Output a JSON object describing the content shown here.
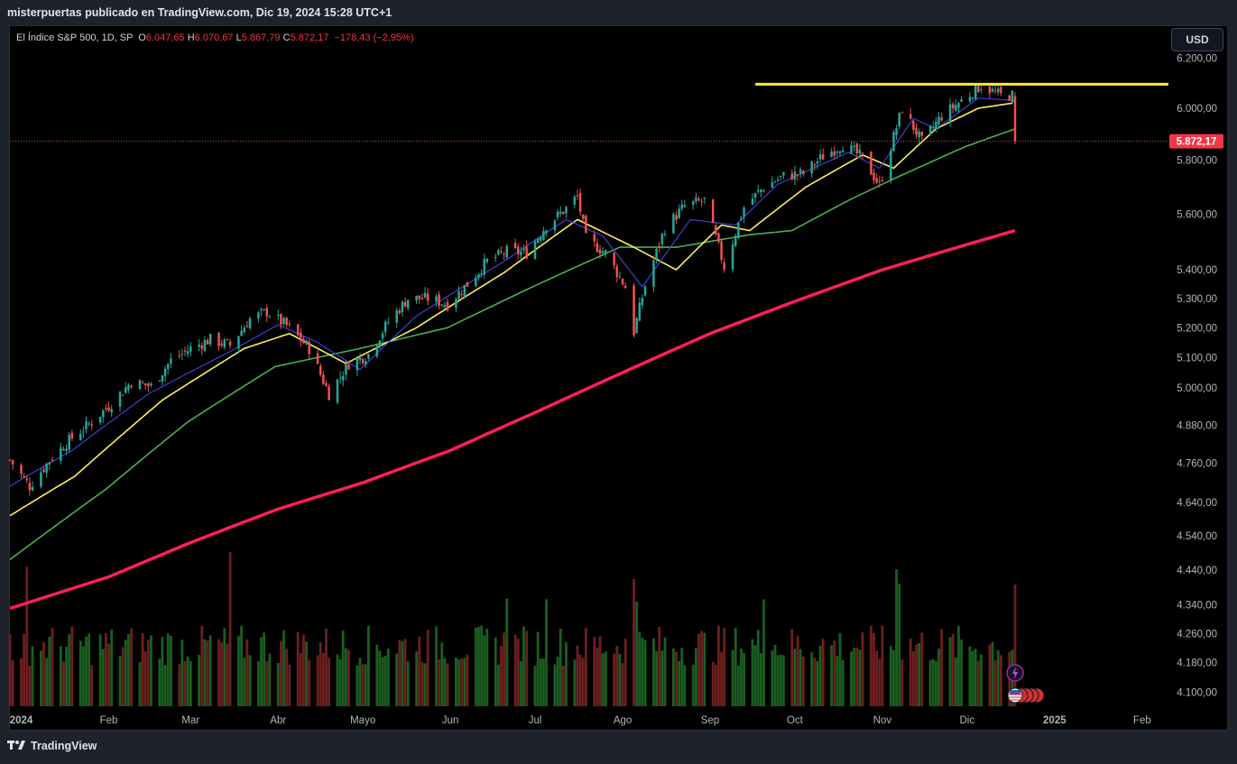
{
  "header": {
    "publisher_text": "misterpuertas publicado en TradingView.com, Dic 19, 2024 15:28 UTC+1"
  },
  "legend": {
    "symbol": "El Índice S&P 500, 1D, SP",
    "open_label": "O",
    "open": "6.047,65",
    "high_label": "H",
    "high": "6.070,67",
    "low_label": "L",
    "low": "5.867,79",
    "close_label": "C",
    "close": "5.872,17",
    "change": "−178,43 (−2,95%)"
  },
  "currency_button": "USD",
  "footer": {
    "brand": "TradingView"
  },
  "colors": {
    "background": "#000000",
    "frame": "#1e222d",
    "axis_text": "#b2b5be",
    "up": "#26a69a",
    "down": "#ef5350",
    "vol_up": "#1b5e20",
    "vol_down": "#6d1f1f",
    "ma_fast": "#3f3fd4",
    "ma_20": "#ffee58",
    "ma_50": "#4caf50",
    "ma_200": "#ff1f5a",
    "resistance": "#ffeb3b",
    "price_tag": "#f23645"
  },
  "chart_data": {
    "type": "candlestick",
    "title": "El Índice S&P 500",
    "interval": "1D",
    "price_scale": "log",
    "y_ticks": [
      6200,
      6000,
      5800,
      5600,
      5400,
      5300,
      5200,
      5100,
      5000,
      4880,
      4760,
      4640,
      4540,
      4440,
      4340,
      4260,
      4180,
      4100
    ],
    "y_tick_labels": [
      "6.200,00",
      "6.000,00",
      "5.800,00",
      "5.600,00",
      "5.400,00",
      "5.300,00",
      "5.200,00",
      "5.100,00",
      "5.000,00",
      "4.880,00",
      "4.760,00",
      "4.640,00",
      "4.540,00",
      "4.440,00",
      "4.340,00",
      "4.260,00",
      "4.180,00",
      "4.100,00"
    ],
    "x_ticks": [
      {
        "label": "2024",
        "date": "2024-01-01"
      },
      {
        "label": "Feb",
        "date": "2024-02-01"
      },
      {
        "label": "Mar",
        "date": "2024-03-01"
      },
      {
        "label": "Abr",
        "date": "2024-04-01"
      },
      {
        "label": "Mayo",
        "date": "2024-05-01"
      },
      {
        "label": "Jun",
        "date": "2024-06-01"
      },
      {
        "label": "Jul",
        "date": "2024-07-01"
      },
      {
        "label": "Ago",
        "date": "2024-08-01"
      },
      {
        "label": "Sep",
        "date": "2024-09-01"
      },
      {
        "label": "Oct",
        "date": "2024-10-01"
      },
      {
        "label": "Nov",
        "date": "2024-11-01"
      },
      {
        "label": "Dic",
        "date": "2024-12-01"
      },
      {
        "label": "2025",
        "date": "2025-01-01"
      },
      {
        "label": "Feb",
        "date": "2025-02-01"
      }
    ],
    "x_range": [
      "2023-12-28",
      "2025-02-10"
    ],
    "y_range": [
      4060,
      6330
    ],
    "last_price": 5872.17,
    "last_price_label": "5.872,17",
    "resistance_level": 6095,
    "resistance_start": "2024-09-17",
    "price_path": [
      [
        "2023-12-28",
        4770
      ],
      [
        "2024-01-04",
        4690
      ],
      [
        "2024-01-12",
        4780
      ],
      [
        "2024-01-19",
        4840
      ],
      [
        "2024-01-26",
        4890
      ],
      [
        "2024-02-02",
        4950
      ],
      [
        "2024-02-09",
        5020
      ],
      [
        "2024-02-16",
        5005
      ],
      [
        "2024-02-23",
        5090
      ],
      [
        "2024-03-01",
        5130
      ],
      [
        "2024-03-08",
        5160
      ],
      [
        "2024-03-15",
        5140
      ],
      [
        "2024-03-22",
        5230
      ],
      [
        "2024-03-28",
        5254
      ],
      [
        "2024-04-05",
        5200
      ],
      [
        "2024-04-12",
        5130
      ],
      [
        "2024-04-19",
        4980
      ],
      [
        "2024-04-26",
        5080
      ],
      [
        "2024-05-03",
        5110
      ],
      [
        "2024-05-10",
        5220
      ],
      [
        "2024-05-17",
        5300
      ],
      [
        "2024-05-24",
        5300
      ],
      [
        "2024-05-31",
        5280
      ],
      [
        "2024-06-07",
        5350
      ],
      [
        "2024-06-14",
        5430
      ],
      [
        "2024-06-21",
        5465
      ],
      [
        "2024-06-28",
        5460
      ],
      [
        "2024-07-05",
        5560
      ],
      [
        "2024-07-12",
        5620
      ],
      [
        "2024-07-16",
        5665
      ],
      [
        "2024-07-19",
        5510
      ],
      [
        "2024-07-26",
        5460
      ],
      [
        "2024-08-02",
        5340
      ],
      [
        "2024-08-05",
        5186
      ],
      [
        "2024-08-09",
        5345
      ],
      [
        "2024-08-16",
        5550
      ],
      [
        "2024-08-23",
        5630
      ],
      [
        "2024-08-30",
        5650
      ],
      [
        "2024-09-06",
        5410
      ],
      [
        "2024-09-13",
        5625
      ],
      [
        "2024-09-20",
        5700
      ],
      [
        "2024-09-27",
        5740
      ],
      [
        "2024-10-04",
        5750
      ],
      [
        "2024-10-11",
        5815
      ],
      [
        "2024-10-18",
        5860
      ],
      [
        "2024-10-25",
        5810
      ],
      [
        "2024-10-31",
        5705
      ],
      [
        "2024-11-08",
        6000
      ],
      [
        "2024-11-15",
        5870
      ],
      [
        "2024-11-22",
        5970
      ],
      [
        "2024-11-29",
        6030
      ],
      [
        "2024-12-06",
        6090
      ],
      [
        "2024-12-13",
        6050
      ],
      [
        "2024-12-17",
        6050
      ],
      [
        "2024-12-18",
        5872
      ]
    ],
    "ma_fast_path": [
      [
        "2023-12-28",
        4690
      ],
      [
        "2024-01-19",
        4800
      ],
      [
        "2024-02-15",
        4980
      ],
      [
        "2024-03-15",
        5120
      ],
      [
        "2024-04-01",
        5210
      ],
      [
        "2024-04-15",
        5150
      ],
      [
        "2024-04-30",
        5060
      ],
      [
        "2024-05-20",
        5240
      ],
      [
        "2024-06-20",
        5430
      ],
      [
        "2024-07-12",
        5580
      ],
      [
        "2024-07-25",
        5520
      ],
      [
        "2024-08-08",
        5340
      ],
      [
        "2024-08-25",
        5580
      ],
      [
        "2024-09-10",
        5560
      ],
      [
        "2024-09-25",
        5710
      ],
      [
        "2024-10-20",
        5830
      ],
      [
        "2024-10-31",
        5770
      ],
      [
        "2024-11-12",
        5960
      ],
      [
        "2024-11-20",
        5920
      ],
      [
        "2024-12-05",
        6040
      ],
      [
        "2024-12-18",
        6030
      ]
    ],
    "ma_20_path": [
      [
        "2023-12-28",
        4600
      ],
      [
        "2024-01-20",
        4720
      ],
      [
        "2024-02-20",
        4960
      ],
      [
        "2024-03-20",
        5130
      ],
      [
        "2024-04-05",
        5180
      ],
      [
        "2024-04-25",
        5080
      ],
      [
        "2024-05-20",
        5200
      ],
      [
        "2024-06-20",
        5390
      ],
      [
        "2024-07-16",
        5580
      ],
      [
        "2024-08-05",
        5480
      ],
      [
        "2024-08-20",
        5400
      ],
      [
        "2024-09-05",
        5560
      ],
      [
        "2024-09-15",
        5540
      ],
      [
        "2024-10-05",
        5700
      ],
      [
        "2024-10-25",
        5820
      ],
      [
        "2024-11-05",
        5770
      ],
      [
        "2024-11-20",
        5920
      ],
      [
        "2024-12-05",
        6000
      ],
      [
        "2024-12-17",
        6020
      ]
    ],
    "ma_50_path": [
      [
        "2023-12-28",
        4470
      ],
      [
        "2024-01-31",
        4680
      ],
      [
        "2024-02-29",
        4890
      ],
      [
        "2024-03-31",
        5070
      ],
      [
        "2024-04-30",
        5130
      ],
      [
        "2024-05-31",
        5200
      ],
      [
        "2024-06-30",
        5340
      ],
      [
        "2024-07-31",
        5480
      ],
      [
        "2024-08-20",
        5480
      ],
      [
        "2024-09-15",
        5525
      ],
      [
        "2024-09-30",
        5540
      ],
      [
        "2024-10-20",
        5650
      ],
      [
        "2024-11-05",
        5730
      ],
      [
        "2024-11-30",
        5850
      ],
      [
        "2024-12-18",
        5920
      ]
    ],
    "ma_200_path": [
      [
        "2023-12-28",
        4330
      ],
      [
        "2024-02-01",
        4420
      ],
      [
        "2024-03-01",
        4520
      ],
      [
        "2024-04-01",
        4620
      ],
      [
        "2024-05-01",
        4700
      ],
      [
        "2024-06-01",
        4800
      ],
      [
        "2024-07-01",
        4920
      ],
      [
        "2024-08-01",
        5050
      ],
      [
        "2024-09-01",
        5180
      ],
      [
        "2024-10-01",
        5290
      ],
      [
        "2024-11-01",
        5400
      ],
      [
        "2024-12-01",
        5490
      ],
      [
        "2024-12-18",
        5540
      ]
    ],
    "volume_seed": 7,
    "volume_spikes": [
      "2024-01-03",
      "2024-03-15",
      "2024-06-21",
      "2024-07-05",
      "2024-08-05",
      "2024-08-06",
      "2024-09-20",
      "2024-11-06",
      "2024-11-07",
      "2024-12-18"
    ]
  }
}
